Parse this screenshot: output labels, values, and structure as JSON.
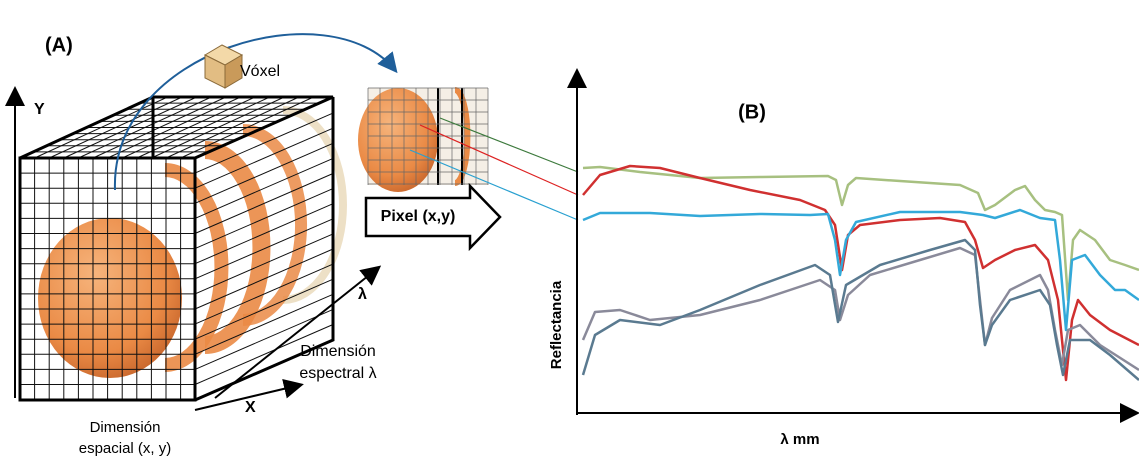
{
  "panel_a": {
    "label": "(A)",
    "voxel": "Vóxel",
    "axis_y": "Y",
    "axis_x": "X",
    "axis_lambda": "λ",
    "spectral_dimension": [
      "Dimensión",
      "espectral λ"
    ],
    "spatial_dimension": [
      "Dimensión",
      "espacial (x, y)"
    ],
    "pixel": "Pixel (x,y)"
  },
  "panel_b": {
    "label": "(B)",
    "y_axis": "Reflectancia",
    "x_axis": "λ mm"
  }
}
